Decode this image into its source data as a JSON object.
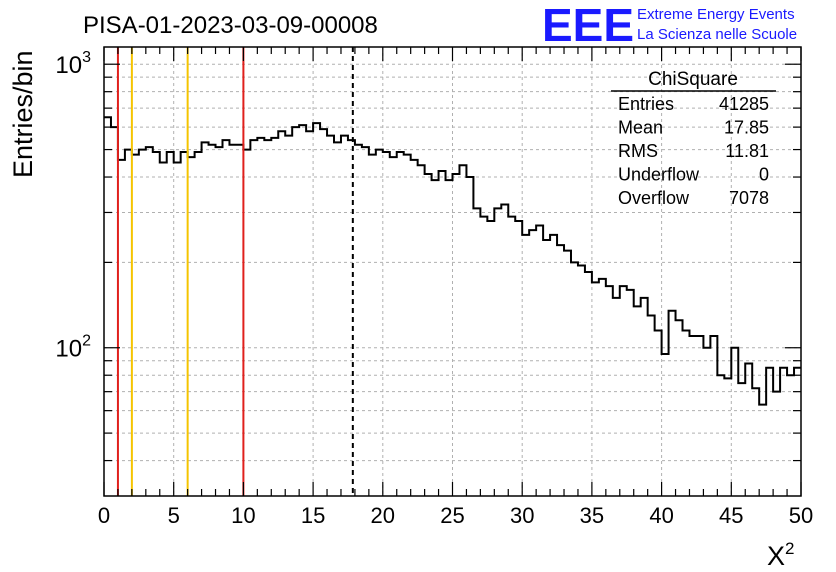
{
  "header": {
    "title": "PISA-01-2023-03-09-00008",
    "logo_text": "EEE",
    "logo_line1": "Extreme Energy Events",
    "logo_line2": "La Scienza nelle Scuole",
    "logo_color": "#1a1aff"
  },
  "stats_box": {
    "title": "ChiSquare",
    "rows": [
      {
        "label": "Entries",
        "value": "41285"
      },
      {
        "label": "Mean",
        "value": "17.85"
      },
      {
        "label": "RMS",
        "value": "11.81"
      },
      {
        "label": "Underflow",
        "value": "0"
      },
      {
        "label": "Overflow",
        "value": "7078"
      }
    ]
  },
  "chart_data": {
    "type": "step",
    "title": "PISA-01-2023-03-09-00008",
    "xlabel": "X²",
    "ylabel": "Entries/bin",
    "xlim": [
      0,
      50
    ],
    "ylim": [
      30,
      1150
    ],
    "yscale": "log",
    "grid": true,
    "bin_width": 0.5,
    "x_ticks": [
      0,
      5,
      10,
      15,
      20,
      25,
      30,
      35,
      40,
      45,
      50
    ],
    "y_tick_labels": [
      {
        "value": 100,
        "base": "10",
        "exp": "2"
      },
      {
        "value": 1000,
        "base": "10",
        "exp": "3"
      }
    ],
    "values": [
      650,
      600,
      460,
      500,
      480,
      500,
      510,
      490,
      450,
      490,
      450,
      490,
      470,
      490,
      530,
      520,
      510,
      540,
      520,
      520,
      500,
      540,
      550,
      540,
      550,
      580,
      560,
      600,
      610,
      580,
      620,
      590,
      560,
      530,
      560,
      540,
      520,
      510,
      480,
      500,
      490,
      470,
      490,
      480,
      460,
      440,
      410,
      390,
      420,
      390,
      410,
      440,
      400,
      310,
      290,
      280,
      310,
      320,
      290,
      280,
      250,
      260,
      270,
      240,
      250,
      230,
      220,
      200,
      195,
      185,
      170,
      175,
      165,
      150,
      165,
      160,
      140,
      150,
      130,
      115,
      95,
      135,
      125,
      115,
      110,
      110,
      100,
      110,
      80,
      78,
      100,
      75,
      88,
      72,
      63,
      85,
      70,
      85,
      80,
      85
    ],
    "vertical_lines": [
      {
        "x": 1,
        "color": "#e0201c",
        "style": "solid"
      },
      {
        "x": 2,
        "color": "#f5c400",
        "style": "solid"
      },
      {
        "x": 6,
        "color": "#f5c400",
        "style": "solid"
      },
      {
        "x": 10,
        "color": "#e0201c",
        "style": "solid"
      },
      {
        "x": 17.85,
        "color": "#000000",
        "style": "dashed"
      }
    ]
  }
}
